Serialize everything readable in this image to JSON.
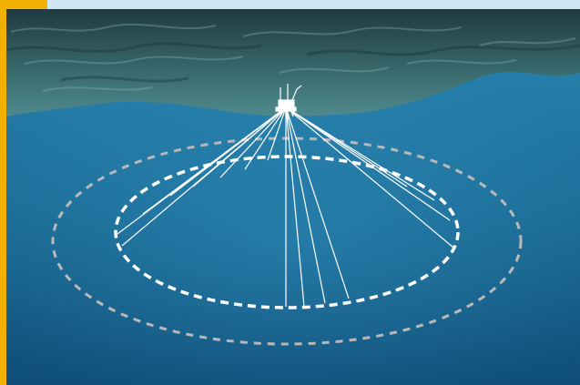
{
  "scene": {
    "subject": "offshore-platform-mooring-spread",
    "colors": {
      "accent": "#f2b100",
      "top_bar": "#cfe6f3",
      "sky_water": "#2f5358",
      "ocean_surface": "#3a6b6e",
      "deep_water": "#1d6f99",
      "deep_water_dark": "#0f4e78",
      "inner_ellipse": "#ffffff",
      "outer_ellipse": "#b9b9b9",
      "mooring_lines": "#ffffff"
    }
  }
}
